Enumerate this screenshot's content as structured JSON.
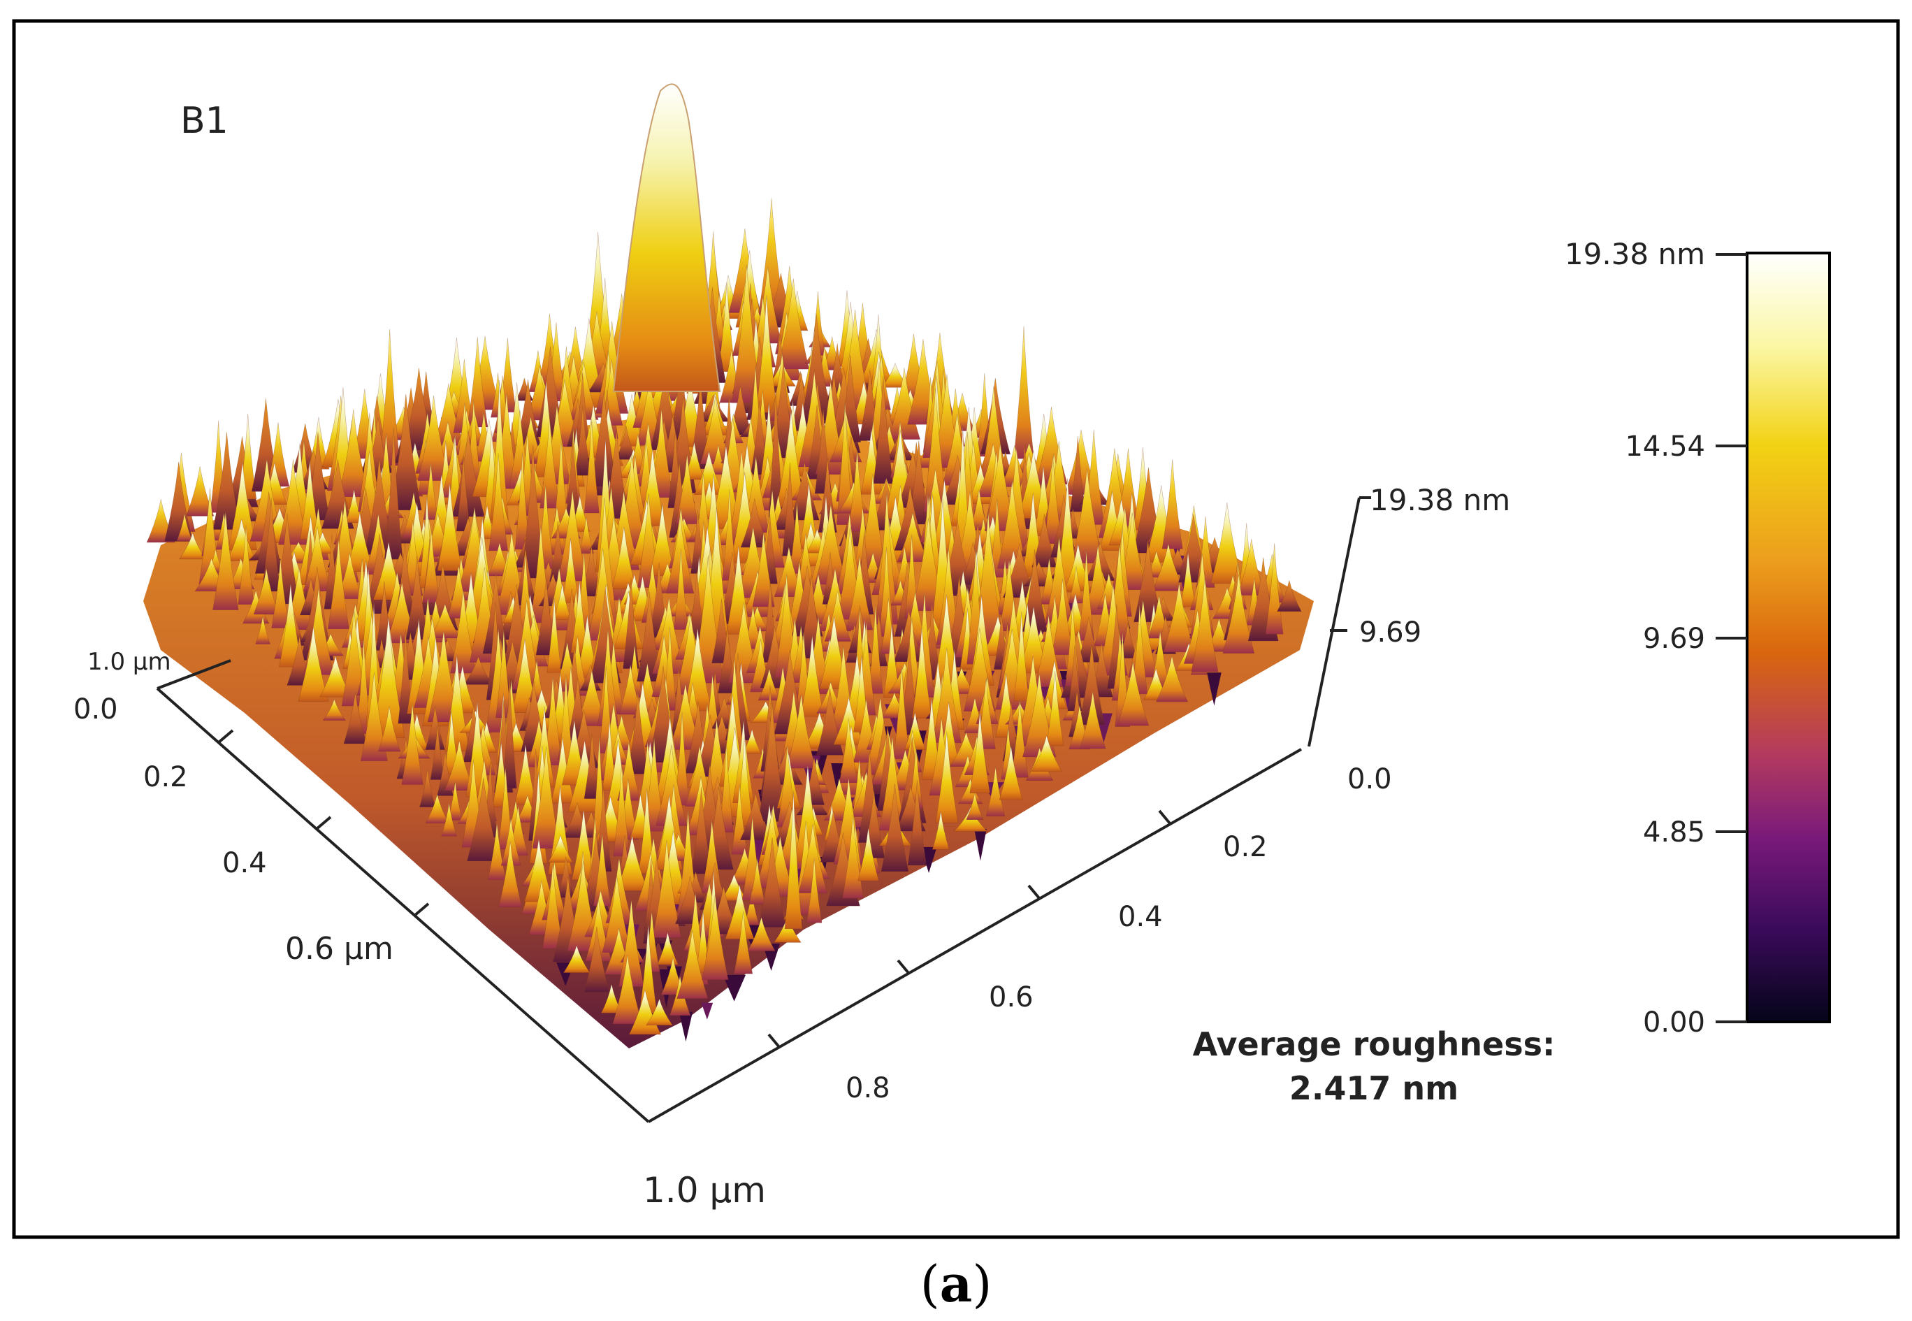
{
  "panel_label": "B1",
  "caption_letter": "a",
  "caption_open": "(",
  "caption_close": ")",
  "colors": {
    "frame": "#000000",
    "axis": "#222222",
    "text": "#222222",
    "colormap": [
      "#ffffff",
      "#fbf7a6",
      "#f2d214",
      "#ec9e1d",
      "#d9660e",
      "#b43b5e",
      "#7a1a7a",
      "#3a0a5a",
      "#05051a"
    ]
  },
  "roughness": {
    "label": "Average roughness:",
    "value": "2.417 nm"
  },
  "z_axis": {
    "max_label": "19.38 nm",
    "mid_label": "9.69"
  },
  "x_axis": {
    "labels": [
      "0.0",
      "0.2",
      "0.4",
      "0.6 µm"
    ],
    "end_label": "1.0 µm"
  },
  "y_axis": {
    "labels": [
      "0.0",
      "0.2",
      "0.4",
      "0.6",
      "0.8"
    ],
    "end_label": "1.0 µm"
  },
  "colorbar": {
    "title": "19.38 nm",
    "ticks": [
      "14.54",
      "9.69",
      "4.85",
      "0.00"
    ]
  },
  "chart_data": {
    "type": "heatmap",
    "title": "B1",
    "x_range_um": [
      0,
      1.0
    ],
    "y_range_um": [
      0,
      1.0
    ],
    "z_range_nm": [
      0,
      19.38
    ],
    "z_ticks_nm": [
      0.0,
      4.85,
      9.69,
      14.54,
      19.38
    ],
    "average_roughness_nm": 2.417
  }
}
